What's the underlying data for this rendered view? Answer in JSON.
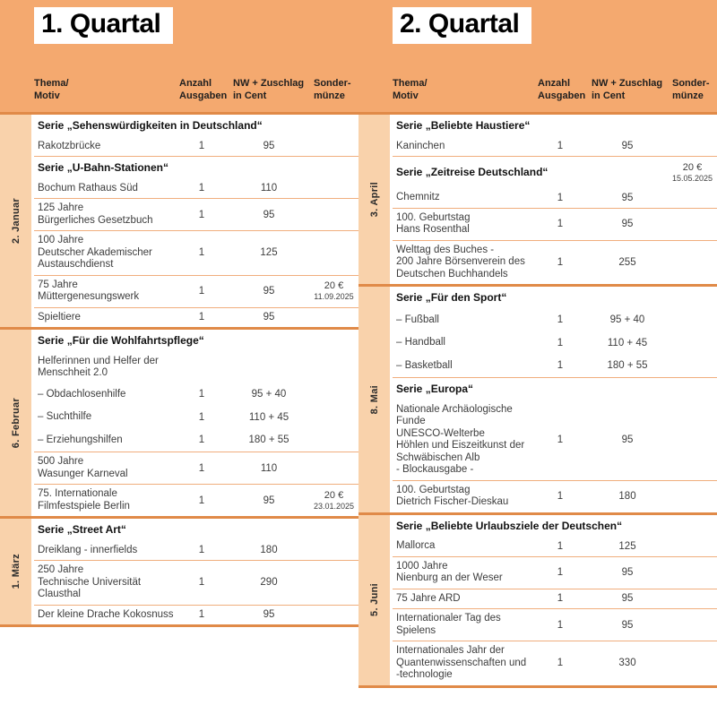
{
  "colors": {
    "band": "#F4A96F",
    "strip": "#F9D2AB",
    "divider": "#E08A48",
    "row_line": "#F0AE7D"
  },
  "column_headers": [
    {
      "line1": "Thema/",
      "line2": "Motiv"
    },
    {
      "line1": "Anzahl",
      "line2": "Ausgaben"
    },
    {
      "line1": "NW + Zuschlag",
      "line2": "in Cent"
    },
    {
      "line1": "Sonder-",
      "line2": "münze"
    }
  ],
  "quarters": [
    {
      "title": "1. Quartal",
      "months": [
        {
          "label": "2. Januar",
          "rows": [
            {
              "type": "series",
              "lines": [
                "Serie „Sehenswürdigkeiten in Deutschland“"
              ]
            },
            {
              "type": "item",
              "lines": [
                "Rakotzbrücke"
              ],
              "count": "1",
              "value": "95"
            },
            {
              "type": "series",
              "lines": [
                "Serie „U-Bahn-Stationen“"
              ]
            },
            {
              "type": "item",
              "lines": [
                "Bochum Rathaus Süd"
              ],
              "count": "1",
              "value": "110"
            },
            {
              "type": "item",
              "lines": [
                "125 Jahre",
                "Bürgerliches Gesetzbuch"
              ],
              "count": "1",
              "value": "95"
            },
            {
              "type": "item",
              "lines": [
                "100 Jahre",
                "Deutscher Akademischer",
                "Austauschdienst"
              ],
              "count": "1",
              "value": "125"
            },
            {
              "type": "item",
              "lines": [
                "75 Jahre",
                "Müttergenesungswerk"
              ],
              "count": "1",
              "value": "95",
              "coin_value": "20 €",
              "coin_date": "11.09.2025"
            },
            {
              "type": "item",
              "lines": [
                "Spieltiere"
              ],
              "count": "1",
              "value": "95"
            }
          ]
        },
        {
          "label": "6. Februar",
          "rows": [
            {
              "type": "series",
              "lines": [
                "Serie „Für die Wohlfahrtspflege“"
              ]
            },
            {
              "type": "item",
              "lines": [
                "Helferinnen und Helfer der",
                "Menschheit 2.0"
              ]
            },
            {
              "type": "subitem",
              "lines": [
                "– Obdachlosenhilfe"
              ],
              "count": "1",
              "value": "95 + 40"
            },
            {
              "type": "subitem",
              "lines": [
                "– Suchthilfe"
              ],
              "count": "1",
              "value": "110 + 45"
            },
            {
              "type": "subitem",
              "lines": [
                "– Erziehungshilfen"
              ],
              "count": "1",
              "value": "180 + 55"
            },
            {
              "type": "item",
              "lines": [
                "500 Jahre",
                "Wasunger Karneval"
              ],
              "count": "1",
              "value": "110"
            },
            {
              "type": "item",
              "lines": [
                "75. Internationale",
                "Filmfestspiele Berlin"
              ],
              "count": "1",
              "value": "95",
              "coin_value": "20 €",
              "coin_date": "23.01.2025"
            }
          ]
        },
        {
          "label": "1. März",
          "rows": [
            {
              "type": "series",
              "lines": [
                "Serie „Street Art“"
              ]
            },
            {
              "type": "item",
              "lines": [
                "Dreiklang - innerfields"
              ],
              "count": "1",
              "value": "180"
            },
            {
              "type": "item",
              "lines": [
                "250 Jahre",
                "Technische Universität",
                "Clausthal"
              ],
              "count": "1",
              "value": "290"
            },
            {
              "type": "item",
              "lines": [
                "Der kleine Drache Kokosnuss"
              ],
              "count": "1",
              "value": "95"
            }
          ]
        }
      ]
    },
    {
      "title": "2. Quartal",
      "months": [
        {
          "label": "3. April",
          "rows": [
            {
              "type": "series",
              "lines": [
                "Serie „Beliebte Haustiere“"
              ]
            },
            {
              "type": "item",
              "lines": [
                "Kaninchen"
              ],
              "count": "1",
              "value": "95"
            },
            {
              "type": "series",
              "lines": [
                "Serie „Zeitreise Deutschland“"
              ],
              "coin_value": "20 €",
              "coin_date": "15.05.2025"
            },
            {
              "type": "item",
              "lines": [
                "Chemnitz"
              ],
              "count": "1",
              "value": "95"
            },
            {
              "type": "item",
              "lines": [
                "100. Geburtstag",
                "Hans Rosenthal"
              ],
              "count": "1",
              "value": "95"
            },
            {
              "type": "item",
              "lines": [
                "Welttag des Buches -",
                "200 Jahre Börsenverein des",
                "Deutschen Buchhandels"
              ],
              "count": "1",
              "value": "255"
            }
          ]
        },
        {
          "label": "8. Mai",
          "rows": [
            {
              "type": "series",
              "lines": [
                "Serie „Für den Sport“"
              ]
            },
            {
              "type": "subitem",
              "lines": [
                "– Fußball"
              ],
              "count": "1",
              "value": "95 + 40"
            },
            {
              "type": "subitem",
              "lines": [
                "– Handball"
              ],
              "count": "1",
              "value": "110 + 45"
            },
            {
              "type": "subitem",
              "lines": [
                "– Basketball"
              ],
              "count": "1",
              "value": "180 + 55"
            },
            {
              "type": "series",
              "lines": [
                "Serie „Europa“"
              ]
            },
            {
              "type": "item",
              "lines": [
                "Nationale Archäologische",
                "Funde",
                "UNESCO-Welterbe",
                "Höhlen und Eiszeitkunst der",
                "Schwäbischen Alb",
                "- Blockausgabe -"
              ],
              "count": "1",
              "value": "95"
            },
            {
              "type": "item",
              "lines": [
                "100. Geburtstag",
                "Dietrich Fischer-Dieskau"
              ],
              "count": "1",
              "value": "180"
            }
          ]
        },
        {
          "label": "5. Juni",
          "rows": [
            {
              "type": "series",
              "lines": [
                "Serie „Beliebte Urlaubsziele der Deutschen“"
              ]
            },
            {
              "type": "item",
              "lines": [
                "Mallorca"
              ],
              "count": "1",
              "value": "125"
            },
            {
              "type": "item",
              "lines": [
                "1000 Jahre",
                "Nienburg an der Weser"
              ],
              "count": "1",
              "value": "95"
            },
            {
              "type": "item",
              "lines": [
                "75 Jahre ARD"
              ],
              "count": "1",
              "value": "95"
            },
            {
              "type": "item",
              "lines": [
                "Internationaler Tag des",
                "Spielens"
              ],
              "count": "1",
              "value": "95"
            },
            {
              "type": "item",
              "lines": [
                "Internationales Jahr der",
                "Quantenwissenschaften und",
                "-technologie"
              ],
              "count": "1",
              "value": "330"
            }
          ]
        }
      ]
    }
  ]
}
